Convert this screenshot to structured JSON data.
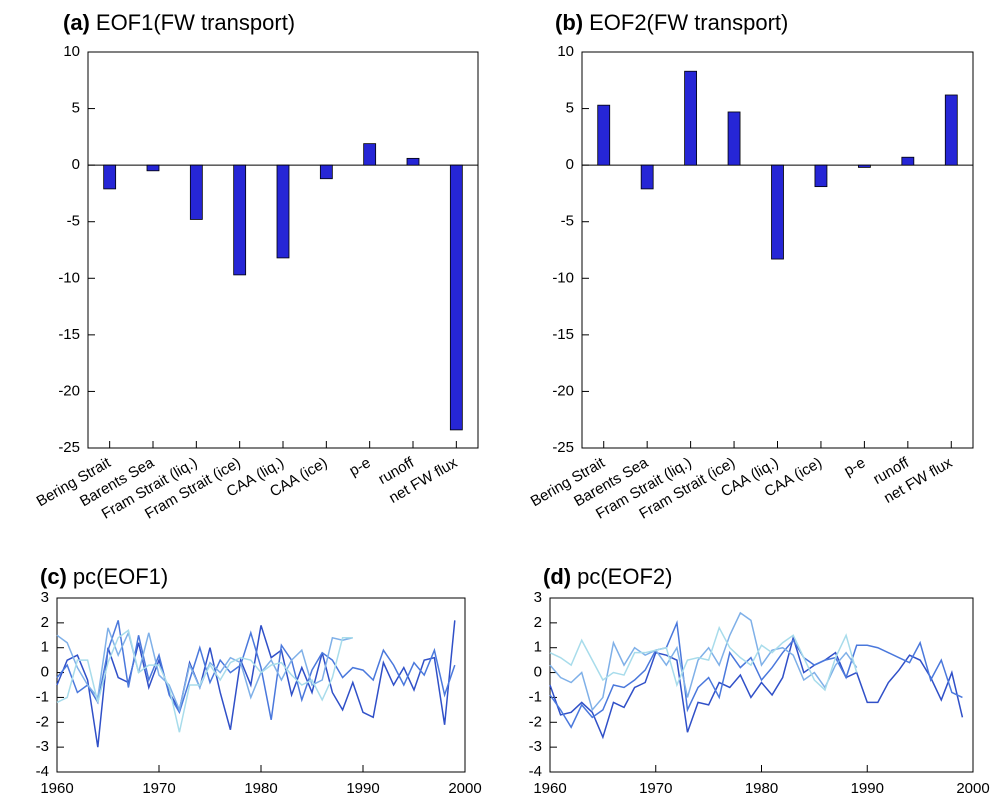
{
  "chart_data": [
    {
      "type": "bar",
      "panel_label": "(a)",
      "title": "EOF1(FW transport)",
      "categories": [
        "Bering Strait",
        "Barents Sea",
        "Fram Strait (liq.)",
        "Fram Strait (ice)",
        "CAA (liq.)",
        "CAA (ice)",
        "p-e",
        "runoff",
        "net FW flux"
      ],
      "values": [
        -2.1,
        -0.5,
        -4.8,
        -9.7,
        -8.2,
        -1.2,
        1.9,
        0.6,
        -23.4
      ],
      "color": "#2626d6",
      "ylim": [
        -25,
        10
      ],
      "yticks": [
        -25,
        -20,
        -15,
        -10,
        -5,
        0,
        5,
        10
      ]
    },
    {
      "type": "bar",
      "panel_label": "(b)",
      "title": "EOF2(FW transport)",
      "categories": [
        "Bering Strait",
        "Barents Sea",
        "Fram Strait (liq.)",
        "Fram Strait (ice)",
        "CAA (liq.)",
        "CAA (ice)",
        "p-e",
        "runoff",
        "net FW flux"
      ],
      "values": [
        5.3,
        -2.1,
        8.3,
        4.7,
        -8.3,
        -1.9,
        -0.2,
        0.7,
        6.2
      ],
      "color": "#2626d6",
      "ylim": [
        -25,
        10
      ],
      "yticks": [
        -25,
        -20,
        -15,
        -10,
        -5,
        0,
        5,
        10
      ]
    },
    {
      "type": "line",
      "panel_label": "(c)",
      "title": "pc(EOF1)",
      "x": [
        1960,
        1961,
        1962,
        1963,
        1964,
        1965,
        1966,
        1967,
        1968,
        1969,
        1970,
        1971,
        1972,
        1973,
        1974,
        1975,
        1976,
        1977,
        1978,
        1979,
        1980,
        1981,
        1982,
        1983,
        1984,
        1985,
        1986,
        1987,
        1988,
        1989,
        1990,
        1991,
        1992,
        1993,
        1994,
        1995,
        1996,
        1997,
        1998,
        1999
      ],
      "series": [
        {
          "color": "#3050c8",
          "values": [
            -0.5,
            0.5,
            0.7,
            -0.3,
            -3.0,
            1.0,
            -0.2,
            -0.4,
            1.2,
            -0.6,
            0.5,
            -0.8,
            -1.5,
            0.4,
            -0.6,
            1.0,
            -0.8,
            -2.3,
            0.5,
            -0.5,
            1.9,
            0.6,
            0.9,
            -0.9,
            0.2,
            -0.8,
            0.8,
            -0.8,
            -1.5,
            -0.4,
            -1.6,
            -1.8,
            0.4,
            -0.5,
            0.2,
            -0.7,
            0.5,
            0.6,
            -2.1,
            2.1
          ]
        },
        {
          "color": "#4a78dc",
          "values": [
            -0.2,
            0.3,
            -0.8,
            -0.5,
            -1.2,
            0.9,
            2.1,
            -0.6,
            1.5,
            -0.3,
            0.7,
            -0.9,
            -1.6,
            -0.3,
            1.0,
            -0.4,
            0.5,
            0.0,
            0.3,
            1.6,
            0.2,
            -1.9,
            1.1,
            0.5,
            -1.1,
            0.1,
            0.8,
            0.5,
            -0.2,
            0.2,
            0.1,
            -0.3,
            0.9,
            0.3,
            -0.5,
            0.4,
            -0.1,
            0.9,
            -0.9,
            0.3
          ]
        },
        {
          "color": "#7fb0e8",
          "values": [
            1.5,
            1.2,
            0.2,
            -0.5,
            -1.0,
            1.8,
            0.7,
            1.6,
            0.0,
            1.6,
            -0.1,
            -0.5,
            -1.5,
            0.3,
            -0.6,
            0.4,
            0.0,
            0.6,
            0.4,
            -1.0,
            0.0,
            0.5,
            -0.3,
            0.5,
            0.9,
            -0.5,
            -0.3,
            1.4,
            1.3,
            1.4,
            null,
            null,
            null,
            null,
            null,
            null,
            null,
            null,
            null,
            null
          ]
        },
        {
          "color": "#a8dceb",
          "values": [
            -1.2,
            -1.0,
            0.5,
            0.5,
            -1.2,
            0.4,
            1.4,
            1.7,
            0.0,
            0.3,
            0.3,
            -0.6,
            -2.4,
            -0.5,
            -0.5,
            0.3,
            -0.3,
            0.4,
            0.6,
            0.5,
            0.0,
            0.3,
            0.4,
            -0.1,
            -0.5,
            -0.3,
            -1.1,
            -0.2,
            1.4,
            1.4,
            null,
            null,
            null,
            null,
            null,
            null,
            null,
            null,
            null,
            null
          ]
        }
      ],
      "xlim": [
        1960,
        2000
      ],
      "xticks": [
        1960,
        1970,
        1980,
        1990,
        2000
      ],
      "ylim": [
        -4,
        3
      ],
      "yticks": [
        -4,
        -3,
        -2,
        -1,
        0,
        1,
        2,
        3
      ]
    },
    {
      "type": "line",
      "panel_label": "(d)",
      "title": "pc(EOF2)",
      "x": [
        1960,
        1961,
        1962,
        1963,
        1964,
        1965,
        1966,
        1967,
        1968,
        1969,
        1970,
        1971,
        1972,
        1973,
        1974,
        1975,
        1976,
        1977,
        1978,
        1979,
        1980,
        1981,
        1982,
        1983,
        1984,
        1985,
        1986,
        1987,
        1988,
        1989,
        1990,
        1991,
        1992,
        1993,
        1994,
        1995,
        1996,
        1997,
        1998,
        1999
      ],
      "series": [
        {
          "color": "#3050c8",
          "values": [
            -0.5,
            -1.7,
            -1.6,
            -1.2,
            -1.6,
            -2.6,
            -1.2,
            -1.4,
            -0.6,
            -0.4,
            0.8,
            0.7,
            0.5,
            -2.4,
            -1.2,
            -1.3,
            -0.4,
            -0.6,
            -0.1,
            -1.0,
            -0.4,
            -0.9,
            -0.2,
            1.4,
            0.0,
            0.3,
            0.5,
            0.8,
            -0.2,
            0.0,
            -1.2,
            -1.2,
            -0.4,
            0.1,
            0.7,
            0.5,
            -0.2,
            -1.1,
            0.0,
            -1.8
          ]
        },
        {
          "color": "#4a78dc",
          "values": [
            -0.9,
            -1.5,
            -2.2,
            -1.3,
            -1.8,
            -1.5,
            -0.5,
            -0.6,
            -0.3,
            0.1,
            0.9,
            1.0,
            2.0,
            -1.5,
            -0.6,
            -0.2,
            -1.0,
            0.8,
            0.2,
            0.6,
            -0.3,
            0.2,
            0.8,
            1.3,
            0.6,
            0.3,
            0.5,
            0.6,
            -0.2,
            1.1,
            1.1,
            1.0,
            0.8,
            0.6,
            0.4,
            1.2,
            -0.3,
            0.5,
            -0.8,
            -1.0
          ]
        },
        {
          "color": "#7fb0e8",
          "values": [
            0.3,
            -0.2,
            -0.4,
            0.0,
            -1.5,
            -1.0,
            1.2,
            0.3,
            1.0,
            0.7,
            0.9,
            0.3,
            1.0,
            -1.0,
            0.5,
            1.0,
            0.3,
            1.5,
            2.4,
            2.1,
            0.3,
            0.9,
            1.0,
            0.7,
            -0.3,
            0.0,
            -0.6,
            0.3,
            0.8,
            0.2,
            null,
            null,
            null,
            null,
            null,
            null,
            null,
            null,
            null,
            null
          ]
        },
        {
          "color": "#a8dceb",
          "values": [
            0.8,
            0.6,
            0.3,
            1.3,
            0.5,
            -0.3,
            0.0,
            -0.1,
            0.8,
            0.8,
            0.9,
            1.0,
            -0.5,
            0.5,
            0.6,
            0.5,
            1.8,
            1.0,
            0.6,
            0.3,
            1.1,
            0.8,
            1.2,
            1.5,
            0.6,
            -0.3,
            -0.7,
            0.6,
            1.5,
            0.0,
            null,
            null,
            null,
            null,
            null,
            null,
            null,
            null,
            null,
            null
          ]
        }
      ],
      "xlim": [
        1960,
        2000
      ],
      "xticks": [
        1960,
        1970,
        1980,
        1990,
        2000
      ],
      "ylim": [
        -4,
        3
      ],
      "yticks": [
        -4,
        -3,
        -2,
        -1,
        0,
        1,
        2,
        3
      ]
    }
  ]
}
